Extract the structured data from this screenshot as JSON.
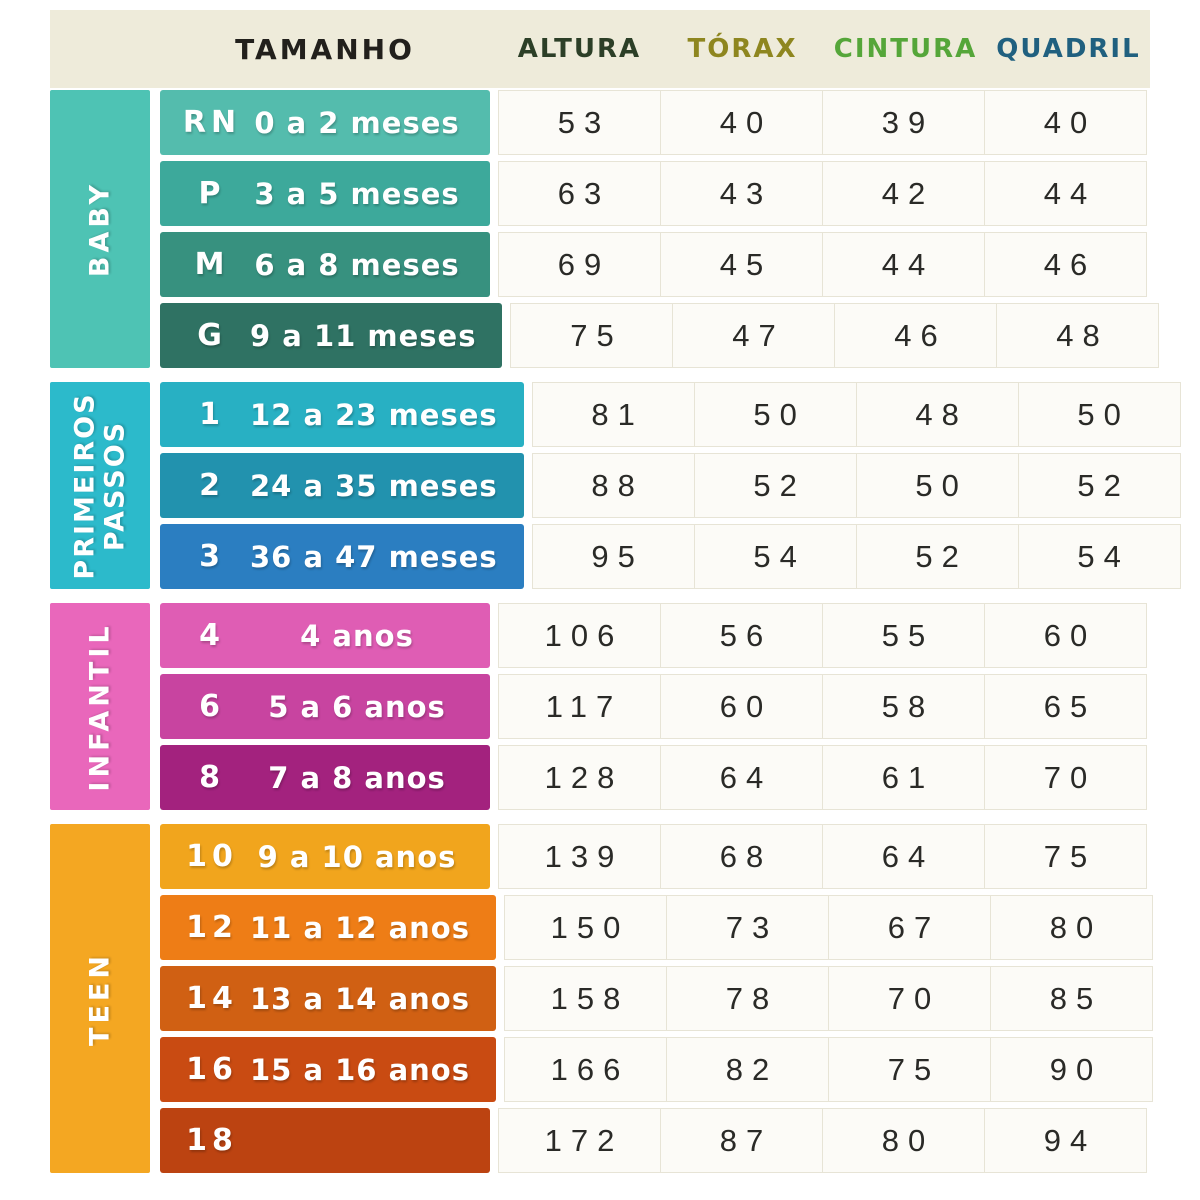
{
  "header": {
    "size_column_label": "TAMANHO",
    "size_column_color": "#22201c",
    "band_color": "#eeebda",
    "columns": [
      {
        "label": "ALTURA",
        "color": "#2c3f27"
      },
      {
        "label": "TÓRAX",
        "color": "#8e861f"
      },
      {
        "label": "CINTURA",
        "color": "#55a639"
      },
      {
        "label": "QUADRIL",
        "color": "#20607f"
      }
    ]
  },
  "groups": [
    {
      "name": "BABY",
      "color": "#4ec3b4",
      "rows": [
        {
          "size": "RN",
          "age": "0 a 2 meses",
          "color": "#54bcad",
          "values": [
            53,
            40,
            39,
            40
          ]
        },
        {
          "size": "P",
          "age": "3 a 5 meses",
          "color": "#3da99b",
          "values": [
            63,
            43,
            42,
            44
          ]
        },
        {
          "size": "M",
          "age": "6 a 8 meses",
          "color": "#37917f",
          "values": [
            69,
            45,
            44,
            46
          ]
        },
        {
          "size": "G",
          "age": "9 a 11 meses",
          "color": "#2f7263",
          "values": [
            75,
            47,
            46,
            48
          ]
        }
      ]
    },
    {
      "name": "PRIMEIROS PASSOS",
      "color": "#2cbacb",
      "rows": [
        {
          "size": "1",
          "age": "12 a 23 meses",
          "color": "#28b0c3",
          "values": [
            81,
            50,
            48,
            50
          ]
        },
        {
          "size": "2",
          "age": "24 a 35 meses",
          "color": "#2292ae",
          "values": [
            88,
            52,
            50,
            52
          ]
        },
        {
          "size": "3",
          "age": "36 a 47 meses",
          "color": "#2b7ec1",
          "values": [
            95,
            54,
            52,
            54
          ]
        }
      ]
    },
    {
      "name": "INFANTIL",
      "color": "#e967bb",
      "rows": [
        {
          "size": "4",
          "age": "4 anos",
          "color": "#df5db4",
          "values": [
            106,
            56,
            55,
            60
          ]
        },
        {
          "size": "6",
          "age": "5 a 6 anos",
          "color": "#c844a0",
          "values": [
            117,
            60,
            58,
            65
          ]
        },
        {
          "size": "8",
          "age": "7 a 8 anos",
          "color": "#a3227e",
          "values": [
            128,
            64,
            61,
            70
          ]
        }
      ]
    },
    {
      "name": "TEEN",
      "color": "#f4a722",
      "rows": [
        {
          "size": "10",
          "age": "9 a 10 anos",
          "color": "#f1a51d",
          "values": [
            139,
            68,
            64,
            75
          ]
        },
        {
          "size": "12",
          "age": "11 a 12 anos",
          "color": "#ee7d16",
          "values": [
            150,
            73,
            67,
            80
          ]
        },
        {
          "size": "14",
          "age": "13 a 14 anos",
          "color": "#d06013",
          "values": [
            158,
            78,
            70,
            85
          ]
        },
        {
          "size": "16",
          "age": "15 a 16 anos",
          "color": "#c94b12",
          "values": [
            166,
            82,
            75,
            90
          ]
        },
        {
          "size": "18",
          "age": "",
          "color": "#bc4311",
          "values": [
            172,
            87,
            80,
            94
          ]
        }
      ]
    }
  ],
  "chart_data": {
    "type": "table",
    "columns": [
      "TAMANHO",
      "ALTURA",
      "TÓRAX",
      "CINTURA",
      "QUADRIL"
    ],
    "rows": [
      {
        "categoria": "BABY",
        "tamanho": "RN",
        "idade": "0 a 2 meses",
        "altura": 53,
        "torax": 40,
        "cintura": 39,
        "quadril": 40
      },
      {
        "categoria": "BABY",
        "tamanho": "P",
        "idade": "3 a 5 meses",
        "altura": 63,
        "torax": 43,
        "cintura": 42,
        "quadril": 44
      },
      {
        "categoria": "BABY",
        "tamanho": "M",
        "idade": "6 a 8 meses",
        "altura": 69,
        "torax": 45,
        "cintura": 44,
        "quadril": 46
      },
      {
        "categoria": "BABY",
        "tamanho": "G",
        "idade": "9 a 11 meses",
        "altura": 75,
        "torax": 47,
        "cintura": 46,
        "quadril": 48
      },
      {
        "categoria": "PRIMEIROS PASSOS",
        "tamanho": "1",
        "idade": "12 a 23 meses",
        "altura": 81,
        "torax": 50,
        "cintura": 48,
        "quadril": 50
      },
      {
        "categoria": "PRIMEIROS PASSOS",
        "tamanho": "2",
        "idade": "24 a 35 meses",
        "altura": 88,
        "torax": 52,
        "cintura": 50,
        "quadril": 52
      },
      {
        "categoria": "PRIMEIROS PASSOS",
        "tamanho": "3",
        "idade": "36 a 47 meses",
        "altura": 95,
        "torax": 54,
        "cintura": 52,
        "quadril": 54
      },
      {
        "categoria": "INFANTIL",
        "tamanho": "4",
        "idade": "4 anos",
        "altura": 106,
        "torax": 56,
        "cintura": 55,
        "quadril": 60
      },
      {
        "categoria": "INFANTIL",
        "tamanho": "6",
        "idade": "5 a 6 anos",
        "altura": 117,
        "torax": 60,
        "cintura": 58,
        "quadril": 65
      },
      {
        "categoria": "INFANTIL",
        "tamanho": "8",
        "idade": "7 a 8 anos",
        "altura": 128,
        "torax": 64,
        "cintura": 61,
        "quadril": 70
      },
      {
        "categoria": "TEEN",
        "tamanho": "10",
        "idade": "9 a 10 anos",
        "altura": 139,
        "torax": 68,
        "cintura": 64,
        "quadril": 75
      },
      {
        "categoria": "TEEN",
        "tamanho": "12",
        "idade": "11 a 12 anos",
        "altura": 150,
        "torax": 73,
        "cintura": 67,
        "quadril": 80
      },
      {
        "categoria": "TEEN",
        "tamanho": "14",
        "idade": "13 a 14 anos",
        "altura": 158,
        "torax": 78,
        "cintura": 70,
        "quadril": 85
      },
      {
        "categoria": "TEEN",
        "tamanho": "16",
        "idade": "15 a 16 anos",
        "altura": 166,
        "torax": 82,
        "cintura": 75,
        "quadril": 90
      },
      {
        "categoria": "TEEN",
        "tamanho": "18",
        "idade": "",
        "altura": 172,
        "torax": 87,
        "cintura": 80,
        "quadril": 94
      }
    ]
  }
}
